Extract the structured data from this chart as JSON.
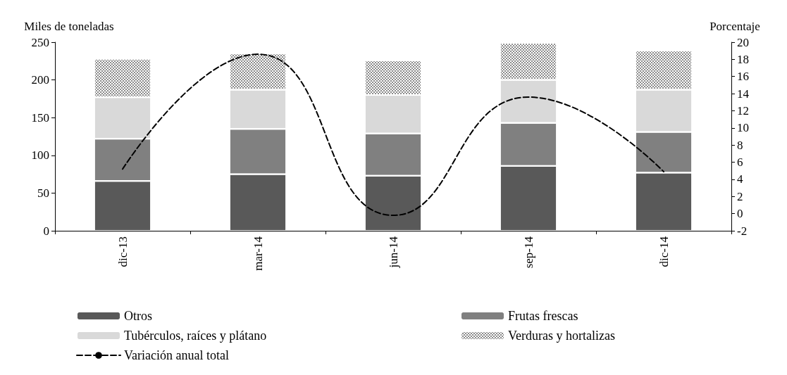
{
  "chart_data": {
    "type": "bar",
    "stacked": true,
    "ylabel": "Miles de toneladas",
    "y2label": "Porcentaje",
    "categories": [
      "dic-13",
      "mar-14",
      "jun-14",
      "sep-14",
      "dic-14"
    ],
    "series": [
      {
        "name": "Otros",
        "color": "#595959",
        "values": [
          66,
          75,
          73,
          86,
          77
        ]
      },
      {
        "name": "Frutas frescas",
        "color": "#808080",
        "values": [
          56,
          60,
          56,
          57,
          54
        ]
      },
      {
        "name": "Tubérculos, raíces y plátano",
        "color": "#d9d9d9",
        "values": [
          55,
          52,
          51,
          57,
          56
        ]
      },
      {
        "name": "Verduras y hortalizas",
        "color": "#8c8c8c",
        "values": [
          51,
          48,
          46,
          49,
          52
        ]
      },
      {
        "name": "Variación anual total",
        "type": "line",
        "axis": "y2",
        "color": "#000000",
        "line_style": "dashed",
        "marker": "none",
        "values": [
          5.2,
          18.6,
          -0.2,
          13.6,
          4.9
        ]
      }
    ],
    "ylim": [
      0,
      250
    ],
    "yticks": [
      0,
      50,
      100,
      150,
      200,
      250
    ],
    "y2lim": [
      -2,
      20
    ],
    "y2ticks": [
      -2,
      0,
      2,
      4,
      6,
      8,
      10,
      12,
      14,
      16,
      18,
      20
    ],
    "grid": false,
    "legend": "bottom"
  }
}
